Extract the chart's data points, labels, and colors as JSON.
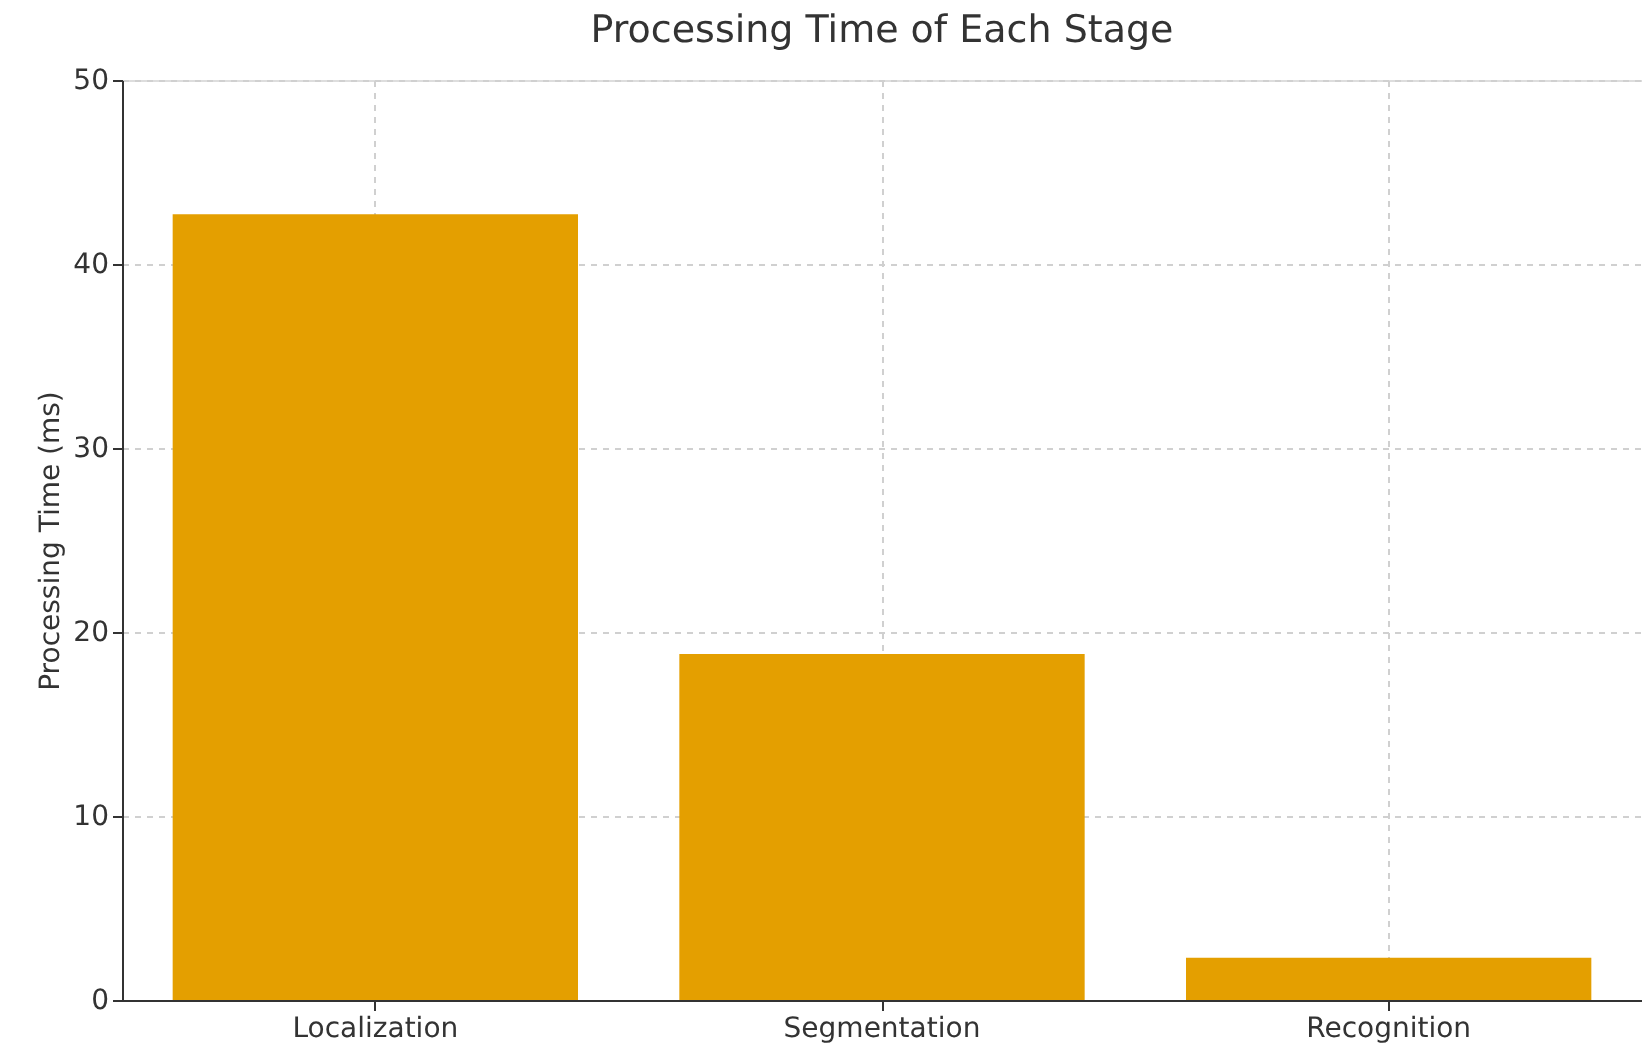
{
  "chart_data": {
    "type": "bar",
    "title": "Processing Time of Each Stage",
    "ylabel": "Processing Time (ms)",
    "categories": [
      "Localization",
      "Segmentation",
      "Recognition"
    ],
    "values": [
      42.7,
      18.8,
      2.3
    ],
    "color": "#e49f00",
    "ylim": [
      0,
      50
    ],
    "yticks": [
      0,
      10,
      20,
      30,
      40,
      50
    ],
    "grid": true
  }
}
